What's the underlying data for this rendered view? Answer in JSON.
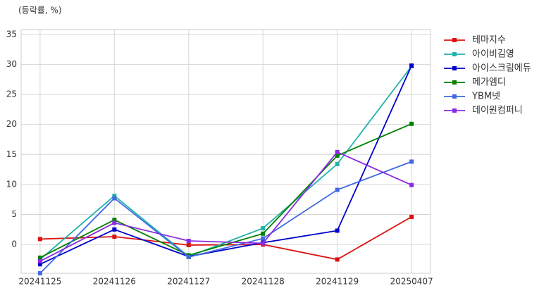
{
  "chart_data": {
    "type": "line",
    "ylabel": "(등락률, %)",
    "categories": [
      "20241125",
      "20241126",
      "20241127",
      "20241128",
      "20241129",
      "20250407"
    ],
    "series": [
      {
        "name": "테마지수",
        "color": "#dd1111",
        "values": [
          0.9,
          1.3,
          -0.1,
          0.0,
          -2.5,
          4.6
        ]
      },
      {
        "name": "아이비김영",
        "color": "#20b2aa",
        "values": [
          -2.5,
          8.1,
          -2.0,
          2.7,
          13.4,
          29.7
        ]
      },
      {
        "name": "아이스크림에듀",
        "color": "#0000cd",
        "values": [
          -3.3,
          2.5,
          -2.0,
          0.3,
          2.3,
          29.8
        ]
      },
      {
        "name": "메가엠디",
        "color": "#008000",
        "values": [
          -2.2,
          4.1,
          -1.8,
          1.8,
          14.8,
          20.1
        ]
      },
      {
        "name": "YBM넷",
        "color": "#4169e1",
        "values": [
          -4.8,
          7.7,
          -2.1,
          1.0,
          9.1,
          13.8
        ]
      },
      {
        "name": "데이원컴퍼니",
        "color": "#8a2be2",
        "values": [
          -2.8,
          3.6,
          0.6,
          0.2,
          15.4,
          9.9
        ]
      }
    ],
    "ylim": [
      -4.8,
      35.8
    ],
    "yticks": [
      0,
      5,
      10,
      15,
      20,
      25,
      30,
      35
    ],
    "grid": true,
    "legend": "outside-right"
  }
}
